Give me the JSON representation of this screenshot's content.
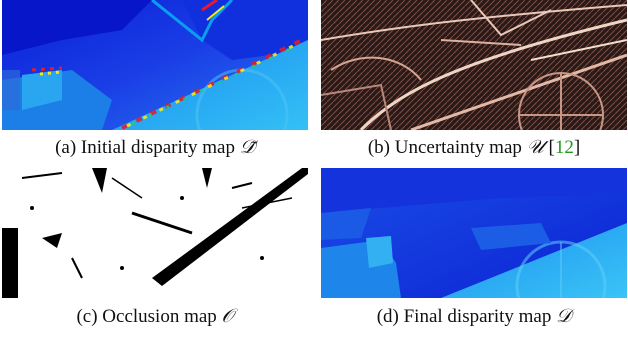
{
  "figure": {
    "panels": [
      {
        "caption": "(a) Initial disparity map",
        "symbol": "𝒟̃"
      },
      {
        "caption": "(b) Uncertainty map",
        "symbol": "𝒰",
        "cite_open": "[",
        "cite": "12",
        "cite_close": "]"
      },
      {
        "caption": "(c) Occlusion map",
        "symbol": "𝒪"
      },
      {
        "caption": "(d) Final disparity map",
        "symbol": "𝒟"
      }
    ]
  }
}
